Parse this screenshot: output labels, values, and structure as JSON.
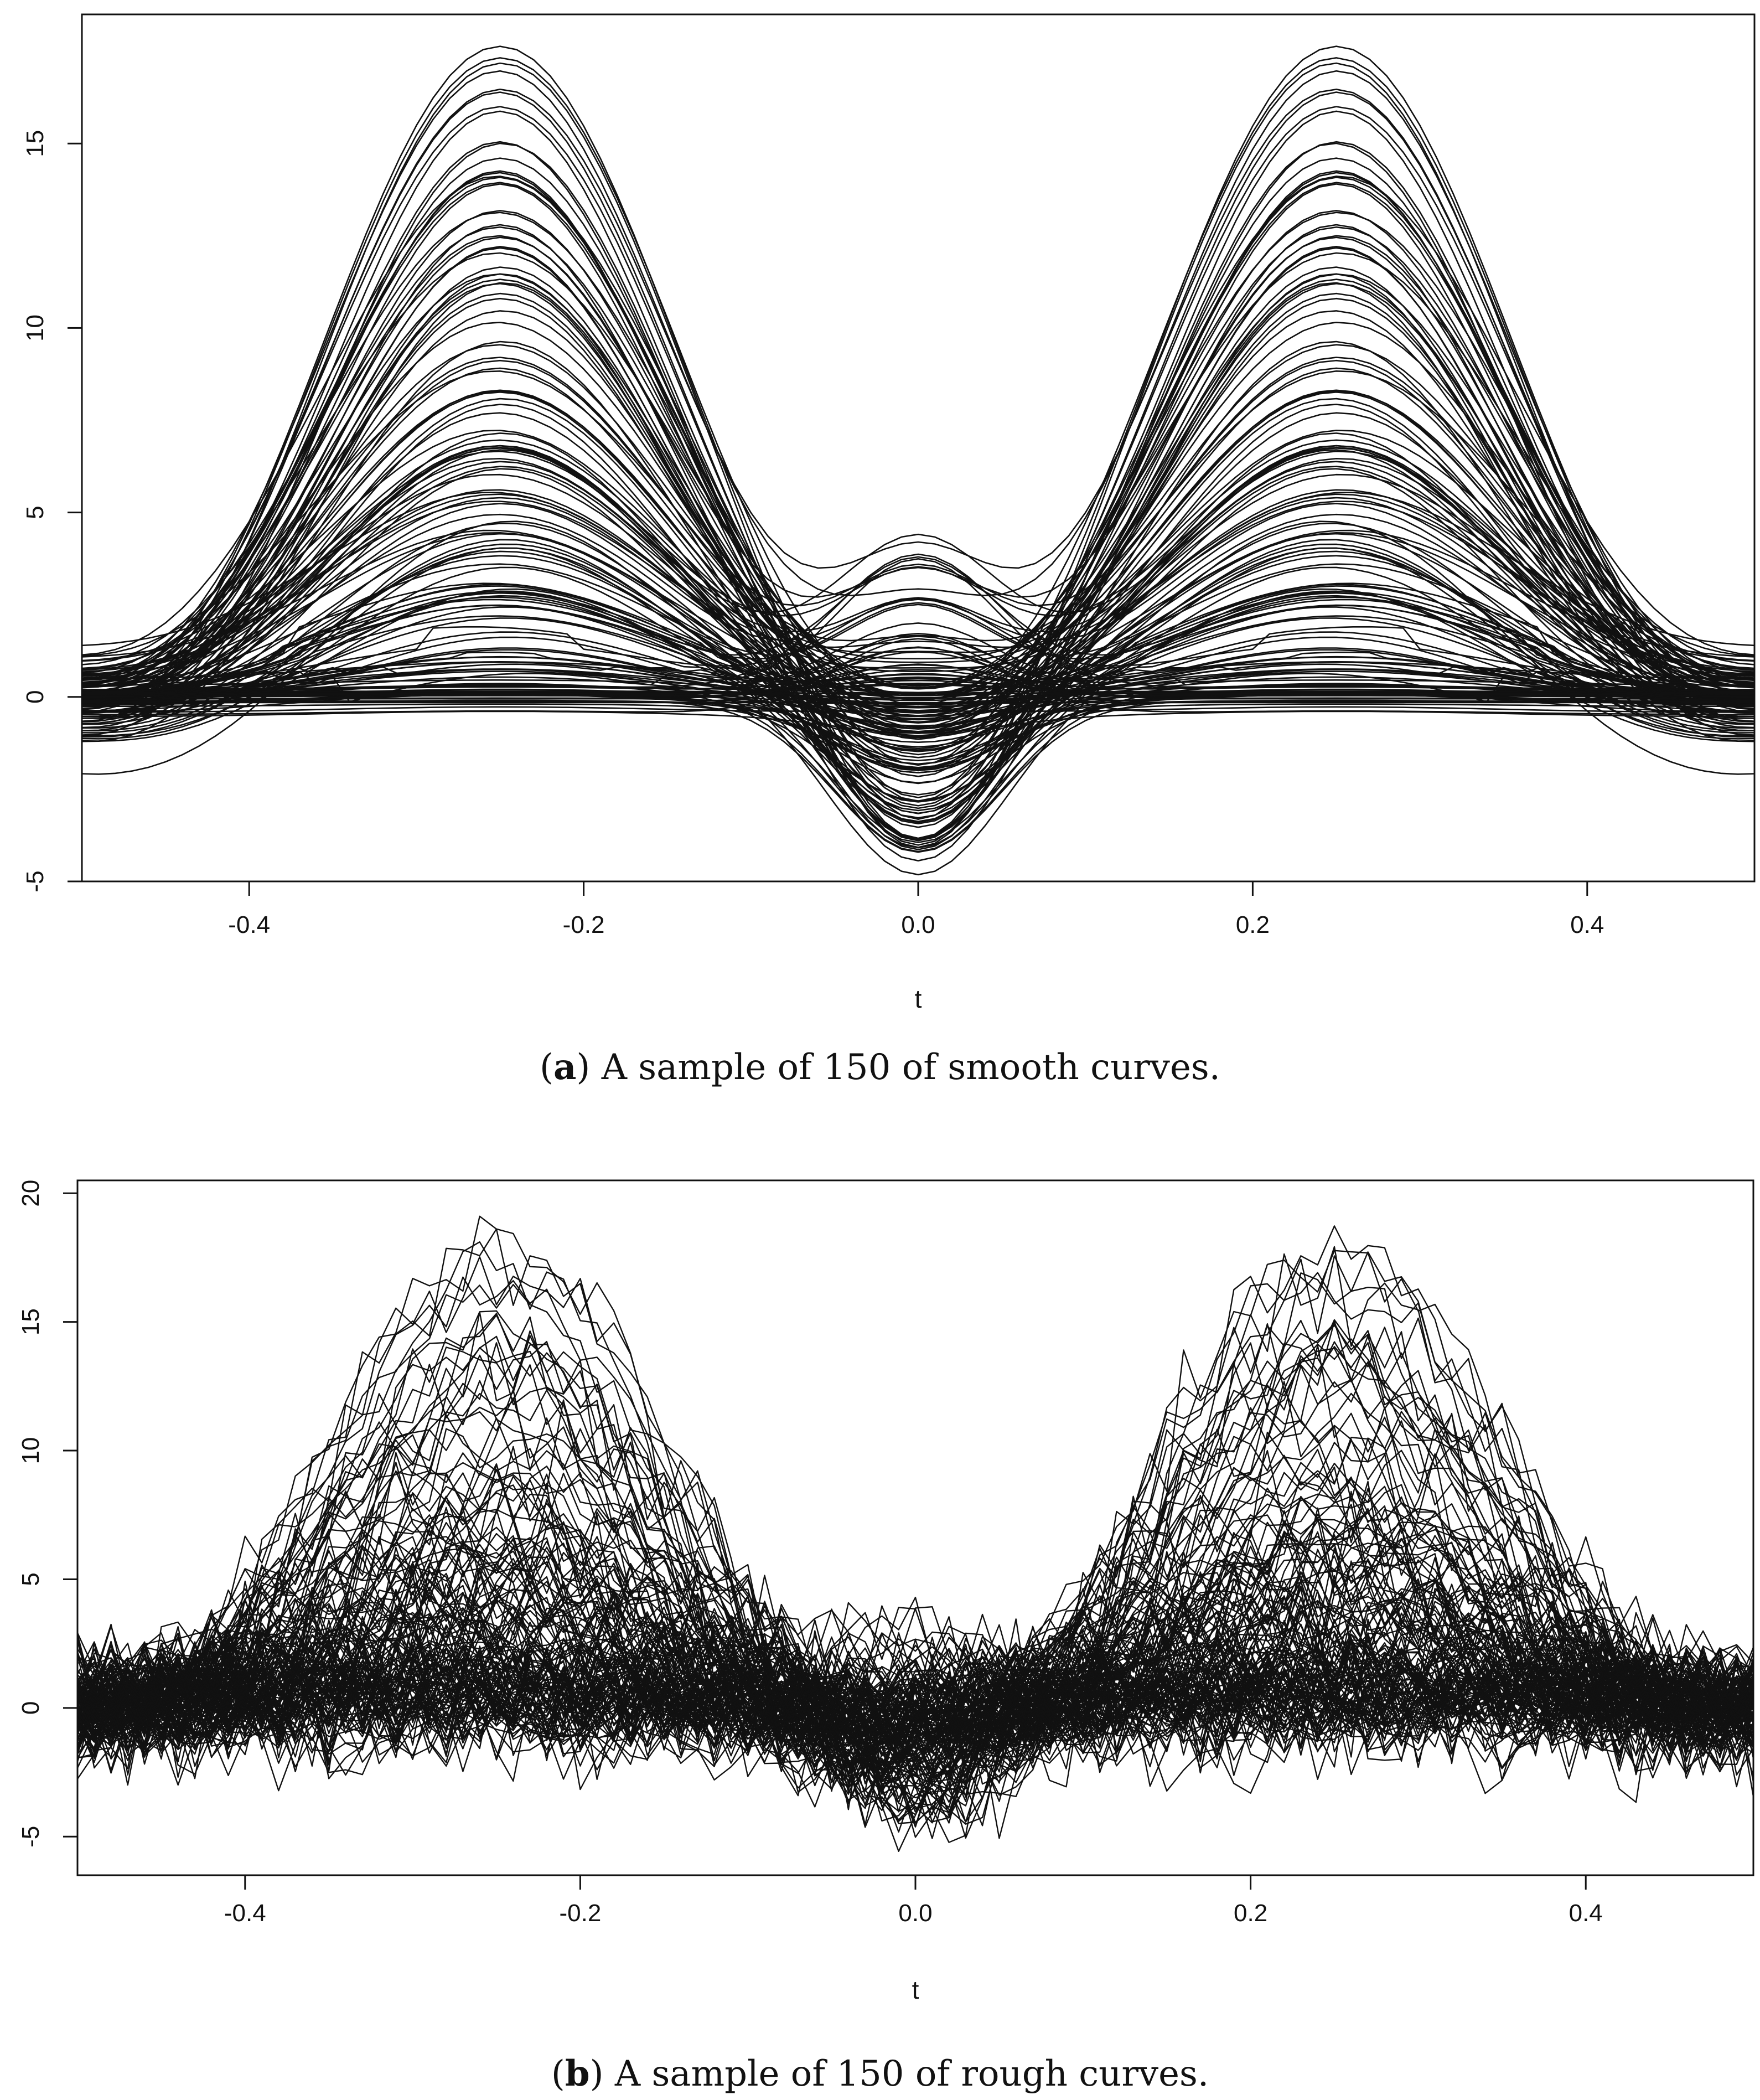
{
  "chart_data": [
    {
      "id": "a",
      "type": "line",
      "xlabel": "t",
      "ylabel": "",
      "xlim": [
        -0.5,
        0.5
      ],
      "ylim": [
        -5,
        18.5
      ],
      "xticks": [
        -0.4,
        -0.2,
        0.0,
        0.2,
        0.4
      ],
      "xtick_labels": [
        "-0.4",
        "-0.2",
        "0.0",
        "0.2",
        "0.4"
      ],
      "yticks": [
        -5,
        0,
        5,
        10,
        15
      ],
      "ytick_labels": [
        "-5",
        "0",
        "5",
        "10",
        "15"
      ],
      "grid": false,
      "n_curves": 150,
      "n_points": 101,
      "series_description": "150 smooth curves with two bumps at t = ±0.25 (amplitudes up to ~18) and a central dip at t = 0 (down to ~-4.5)",
      "caption_letter": "a",
      "caption_text": ") A sample of 150 of smooth curves."
    },
    {
      "id": "b",
      "type": "line",
      "xlabel": "t",
      "ylabel": "",
      "xlim": [
        -0.5,
        0.5
      ],
      "ylim": [
        -6.5,
        20.5
      ],
      "xticks": [
        -0.4,
        -0.2,
        0.0,
        0.2,
        0.4
      ],
      "xtick_labels": [
        "-0.4",
        "-0.2",
        "0.0",
        "0.2",
        "0.4"
      ],
      "yticks": [
        -5,
        0,
        5,
        10,
        15,
        20
      ],
      "ytick_labels": [
        "-5",
        "0",
        "5",
        "10",
        "15",
        "20"
      ],
      "grid": false,
      "n_curves": 150,
      "n_points": 101,
      "series_description": "150 rough (noisy) curves with two bumps at t = ±0.25 (peaks up to ~19) and a dip near t = 0 (down to ~-6)",
      "caption_letter": "b",
      "caption_text": ") A sample of 150 of rough curves."
    }
  ]
}
